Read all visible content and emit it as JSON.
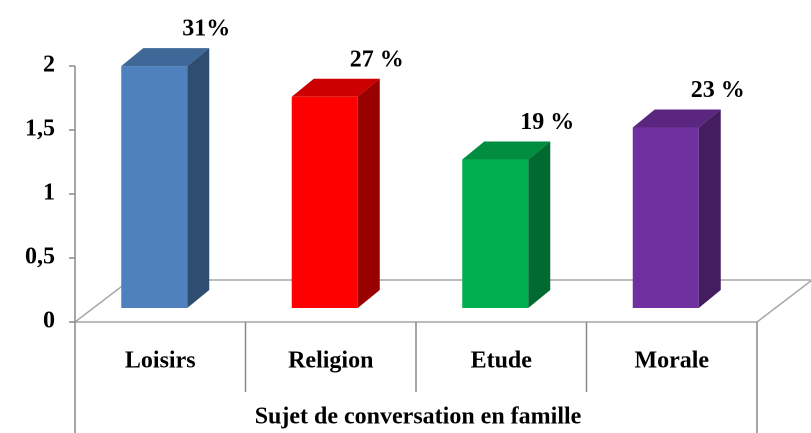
{
  "chart_data": {
    "type": "bar3d",
    "x_label": "Sujet de conversation en famille",
    "categories": [
      "Loisirs",
      "Religion",
      "Etude",
      "Morale"
    ],
    "values": [
      1.89,
      1.65,
      1.16,
      1.41
    ],
    "colors": [
      "#4f81bd",
      "#ff0000",
      "#00b050",
      "#7030a0"
    ],
    "annotations": [
      "31%",
      "27 %",
      "19 %",
      "23 %"
    ],
    "ylim": [
      0,
      2
    ],
    "yticks": [
      0,
      {
        "value": 0.5,
        "label": "0,5"
      },
      1,
      {
        "value": 1.5,
        "label": "1,5"
      },
      2
    ]
  }
}
